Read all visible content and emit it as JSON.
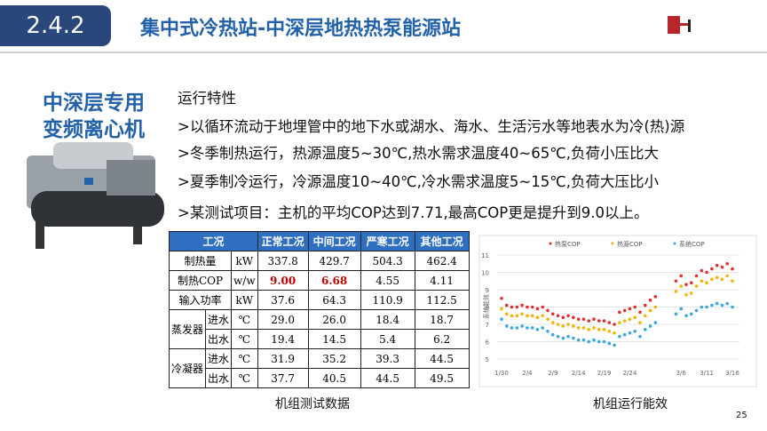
{
  "header": {
    "section": "2.4.2",
    "title": "集中式冷热站-中深层地热热泵能源站"
  },
  "left_heading": [
    "中深层专用",
    "变频离心机"
  ],
  "features": {
    "label": "运行特性",
    "items": [
      ">以循环流动于地埋管中的地下水或湖水、海水、生活污水等地表水为冷(热)源",
      ">冬季制热运行，热源温度5~30℃,热水需求温度40~65℃,负荷小压比大",
      ">夏季制冷运行，冷源温度10~40℃,冷水需求温度5~15℃,负荷大压比小",
      ">某测试项目：主机的平均COP达到7.71,最高COP更是提升到9.0以上。"
    ]
  },
  "table": {
    "caption": "机组测试数据",
    "header": [
      "工况",
      "正常工况",
      "中间工况",
      "严寒工况",
      "其他工况"
    ],
    "rows": [
      [
        "制热量",
        "kW",
        "337.8",
        "429.7",
        "504.3",
        "462.4"
      ],
      [
        "制热COP",
        "w/w",
        "9.00",
        "6.68",
        "4.55",
        "4.11"
      ],
      [
        "输入功率",
        "kW",
        "37.6",
        "64.3",
        "110.9",
        "112.5"
      ]
    ],
    "groups": [
      {
        "name": "蒸发器",
        "rows": [
          [
            "进水",
            "℃",
            "29.0",
            "26.0",
            "18.4",
            "18.7"
          ],
          [
            "出水",
            "℃",
            "19.4",
            "14.5",
            "5.4",
            "6.2"
          ]
        ]
      },
      {
        "name": "冷凝器",
        "rows": [
          [
            "进水",
            "℃",
            "31.9",
            "35.2",
            "39.3",
            "44.5"
          ],
          [
            "出水",
            "℃",
            "37.7",
            "40.5",
            "44.5",
            "49.5"
          ]
        ]
      }
    ]
  },
  "chart_caption": "机组运行能效",
  "page_number": "25",
  "chart_data": {
    "type": "scatter",
    "y_label": "系统能效",
    "ylim": [
      5,
      11
    ],
    "yticks": [
      5,
      6,
      7,
      8,
      9,
      10,
      11
    ],
    "grid": true,
    "categories": [
      "1/30",
      null,
      null,
      null,
      null,
      "2/4",
      null,
      null,
      null,
      null,
      "2/9",
      null,
      null,
      null,
      null,
      "2/14",
      null,
      null,
      null,
      null,
      "2/19",
      null,
      null,
      null,
      null,
      "2/24",
      null,
      null,
      null,
      null,
      null,
      null,
      null,
      null,
      null,
      "3/6",
      null,
      null,
      null,
      null,
      "3/11",
      null,
      null,
      null,
      null,
      "3/16"
    ],
    "series": [
      {
        "name": "热泵COP",
        "color": "#e03030",
        "values": [
          8.5,
          8.1,
          8.0,
          8.0,
          8.1,
          8.0,
          8.0,
          7.9,
          8.0,
          7.8,
          7.6,
          7.5,
          7.4,
          7.5,
          7.4,
          7.3,
          7.3,
          7.2,
          7.3,
          7.2,
          7.2,
          7.1,
          7.0,
          7.7,
          7.8,
          7.9,
          8.0,
          7.7,
          8.1,
          8.4,
          8.6,
          null,
          null,
          null,
          9.5,
          9.8,
          9.3,
          9.4,
          9.8,
          10.1,
          10.0,
          10.2,
          10.4,
          10.3,
          10.5,
          10.2
        ]
      },
      {
        "name": "热源COP",
        "color": "#f2b400",
        "values": [
          7.9,
          7.6,
          7.5,
          7.5,
          7.6,
          7.5,
          7.5,
          7.4,
          7.5,
          7.3,
          7.1,
          7.0,
          6.9,
          7.0,
          6.9,
          6.8,
          6.8,
          6.7,
          6.8,
          6.7,
          6.7,
          6.6,
          6.5,
          7.1,
          7.2,
          7.3,
          7.4,
          7.1,
          7.5,
          7.8,
          8.0,
          null,
          null,
          null,
          8.9,
          9.2,
          8.7,
          8.8,
          9.2,
          9.5,
          9.4,
          9.6,
          9.7,
          9.6,
          9.8,
          9.5
        ]
      },
      {
        "name": "系统COP",
        "color": "#3aa8e0",
        "values": [
          7.3,
          6.9,
          6.8,
          6.8,
          6.9,
          6.8,
          6.8,
          6.7,
          6.8,
          6.6,
          6.4,
          6.3,
          6.2,
          6.3,
          6.2,
          6.1,
          6.1,
          6.0,
          6.1,
          6.0,
          6.0,
          5.9,
          5.8,
          6.3,
          6.4,
          6.5,
          6.6,
          6.3,
          6.7,
          6.9,
          7.1,
          null,
          null,
          null,
          7.6,
          7.9,
          7.5,
          7.6,
          7.8,
          8.0,
          8.0,
          8.1,
          8.2,
          8.1,
          8.2,
          8.0
        ]
      }
    ]
  }
}
